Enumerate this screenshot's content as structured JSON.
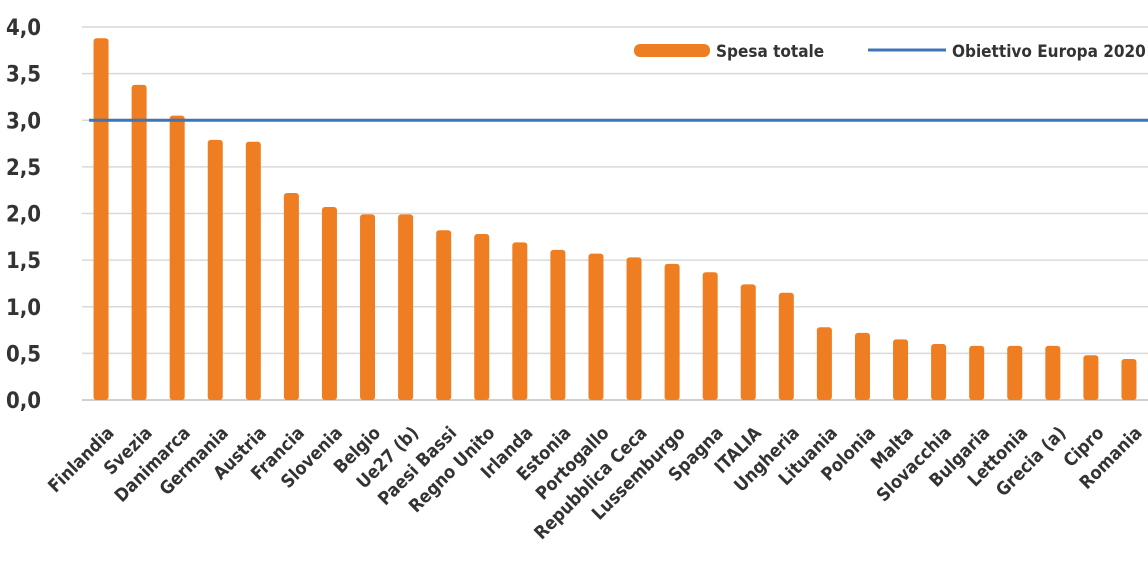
{
  "chart_data": {
    "type": "bar",
    "categories": [
      "Finlandia",
      "Svezia",
      "Danimarca",
      "Germania",
      "Austria",
      "Francia",
      "Slovenia",
      "Belgio",
      "Ue27 (b)",
      "Paesi Bassi",
      "Regno Unito",
      "Irlanda",
      "Estonia",
      "Portogallo",
      "Repubblica Ceca",
      "Lussemburgo",
      "Spagna",
      "ITALIA",
      "Ungheria",
      "Lituania",
      "Polonia",
      "Malta",
      "Slovacchia",
      "Bulgaria",
      "Lettonia",
      "Grecia (a)",
      "Cipro",
      "Romania"
    ],
    "series": [
      {
        "name": "Spesa totale",
        "color": "#ef7d22",
        "values": [
          3.88,
          3.38,
          3.05,
          2.79,
          2.77,
          2.22,
          2.07,
          1.99,
          1.99,
          1.82,
          1.78,
          1.69,
          1.61,
          1.57,
          1.53,
          1.46,
          1.37,
          1.24,
          1.15,
          0.78,
          0.72,
          0.65,
          0.6,
          0.58,
          0.58,
          0.58,
          0.48,
          0.44
        ]
      }
    ],
    "reference_line": {
      "name": "Obiettivo Europa 2020",
      "value": 3.0,
      "color": "#3f74b5"
    },
    "ylim": [
      0,
      4.0
    ],
    "yticks": [
      "0,0",
      "0,5",
      "1,0",
      "1,5",
      "2,0",
      "2,5",
      "3,0",
      "3,5",
      "4,0"
    ],
    "grid": true,
    "legend": {
      "position": "top-right"
    },
    "title": "",
    "xlabel": "",
    "ylabel": ""
  }
}
